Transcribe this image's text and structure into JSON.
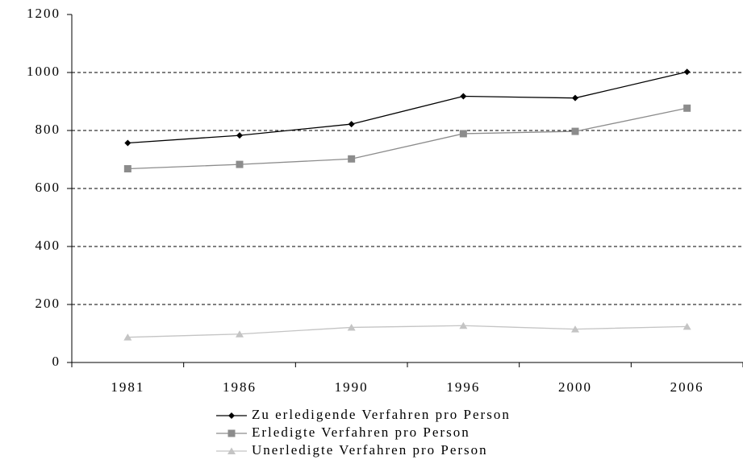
{
  "chart_data": {
    "type": "line",
    "categories": [
      "1981",
      "1986",
      "1990",
      "1996",
      "2000",
      "2006"
    ],
    "series": [
      {
        "name": "Zu erledigende Verfahren pro Person",
        "color": "#000000",
        "marker": "diamond",
        "values": [
          757,
          783,
          822,
          918,
          912,
          1002
        ]
      },
      {
        "name": "Erledigte Verfahren pro Person",
        "color": "#8c8c8c",
        "marker": "square",
        "values": [
          668,
          683,
          702,
          789,
          797,
          877
        ]
      },
      {
        "name": "Unerledigte Verfahren pro Person",
        "color": "#c4c4c4",
        "marker": "triangle",
        "values": [
          87,
          98,
          121,
          127,
          115,
          124
        ]
      }
    ],
    "ylim": [
      0,
      1200
    ],
    "yticks": [
      0,
      200,
      400,
      600,
      800,
      1000,
      1200
    ],
    "grid": true,
    "legend": "bottom"
  }
}
